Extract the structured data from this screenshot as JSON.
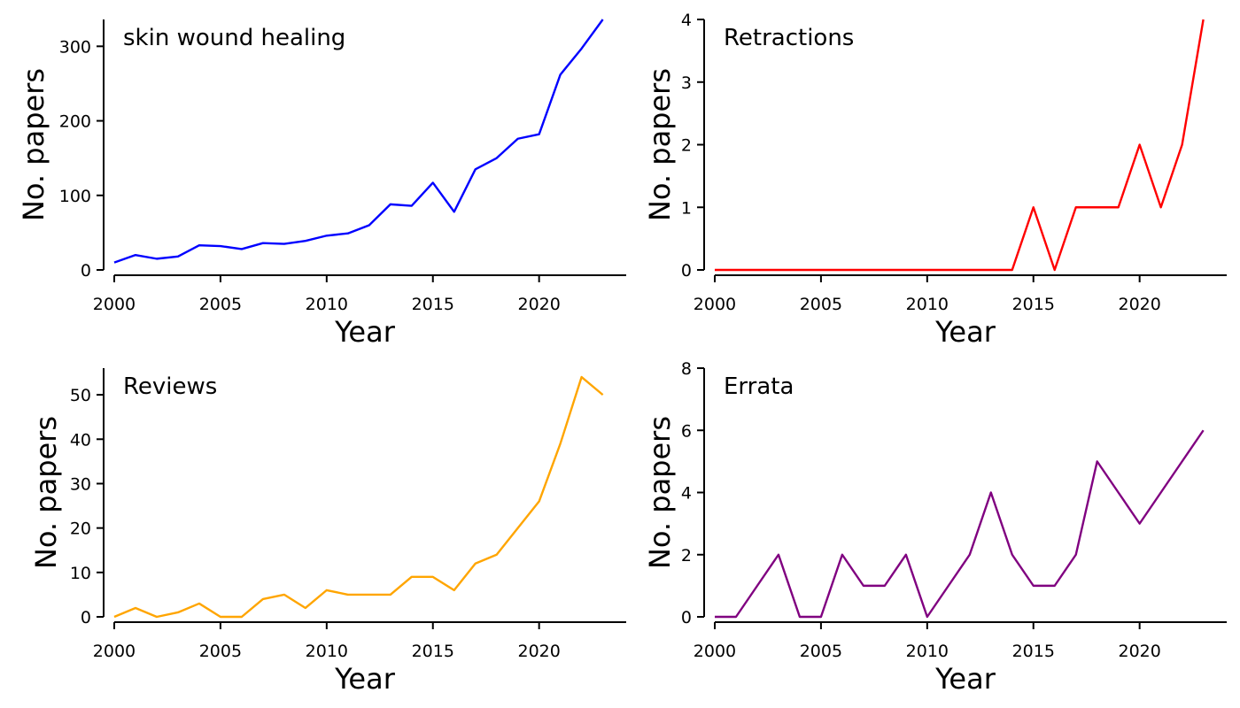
{
  "chart_data": [
    {
      "type": "line",
      "title": "skin wound healing",
      "xlabel": "Year",
      "ylabel": "No. papers",
      "color": "#0000ff",
      "xlim": [
        1999.5,
        2024.1
      ],
      "ylim": [
        0,
        336
      ],
      "xticks": [
        2000,
        2005,
        2010,
        2015,
        2020
      ],
      "yticks": [
        0,
        100,
        200,
        300
      ],
      "x": [
        2000,
        2001,
        2002,
        2003,
        2004,
        2005,
        2006,
        2007,
        2008,
        2009,
        2010,
        2011,
        2012,
        2013,
        2014,
        2015,
        2016,
        2017,
        2018,
        2019,
        2020,
        2021,
        2022,
        2023
      ],
      "values": [
        10,
        20,
        15,
        18,
        33,
        32,
        28,
        36,
        35,
        39,
        46,
        49,
        60,
        88,
        86,
        117,
        78,
        135,
        150,
        176,
        182,
        262,
        297,
        336
      ]
    },
    {
      "type": "line",
      "title": "Retractions",
      "xlabel": "Year",
      "ylabel": "No. papers",
      "color": "#ff0000",
      "xlim": [
        1999.5,
        2024.1
      ],
      "ylim": [
        0,
        4
      ],
      "xticks": [
        2000,
        2005,
        2010,
        2015,
        2020
      ],
      "yticks": [
        0,
        1,
        2,
        3,
        4
      ],
      "x": [
        2000,
        2001,
        2002,
        2003,
        2004,
        2005,
        2006,
        2007,
        2008,
        2009,
        2010,
        2011,
        2012,
        2013,
        2014,
        2015,
        2016,
        2017,
        2018,
        2019,
        2020,
        2021,
        2022,
        2023
      ],
      "values": [
        0,
        0,
        0,
        0,
        0,
        0,
        0,
        0,
        0,
        0,
        0,
        0,
        0,
        0,
        0,
        1,
        0,
        1,
        1,
        1,
        2,
        1,
        2,
        4
      ]
    },
    {
      "type": "line",
      "title": "Reviews",
      "xlabel": "Year",
      "ylabel": "No. papers",
      "color": "#ffa500",
      "xlim": [
        1999.5,
        2024.1
      ],
      "ylim": [
        0,
        56
      ],
      "xticks": [
        2000,
        2005,
        2010,
        2015,
        2020
      ],
      "yticks": [
        0,
        10,
        20,
        30,
        40,
        50
      ],
      "x": [
        2000,
        2001,
        2002,
        2003,
        2004,
        2005,
        2006,
        2007,
        2008,
        2009,
        2010,
        2011,
        2012,
        2013,
        2014,
        2015,
        2016,
        2017,
        2018,
        2019,
        2020,
        2021,
        2022,
        2023
      ],
      "values": [
        0,
        2,
        0,
        1,
        3,
        0,
        0,
        4,
        5,
        2,
        6,
        5,
        5,
        5,
        9,
        9,
        6,
        12,
        14,
        20,
        26,
        39,
        54,
        50
      ]
    },
    {
      "type": "line",
      "title": "Errata",
      "xlabel": "Year",
      "ylabel": "No. papers",
      "color": "#800080",
      "xlim": [
        1999.5,
        2024.1
      ],
      "ylim": [
        0,
        8
      ],
      "xticks": [
        2000,
        2005,
        2010,
        2015,
        2020
      ],
      "yticks": [
        0,
        2,
        4,
        6,
        8
      ],
      "x": [
        2000,
        2001,
        2002,
        2003,
        2004,
        2005,
        2006,
        2007,
        2008,
        2009,
        2010,
        2011,
        2012,
        2013,
        2014,
        2015,
        2016,
        2017,
        2018,
        2019,
        2020,
        2021,
        2022,
        2023
      ],
      "values": [
        0,
        0,
        1,
        2,
        0,
        0,
        2,
        1,
        1,
        2,
        0,
        1,
        2,
        4,
        2,
        1,
        1,
        2,
        5,
        4,
        3,
        4,
        5,
        6
      ]
    }
  ]
}
